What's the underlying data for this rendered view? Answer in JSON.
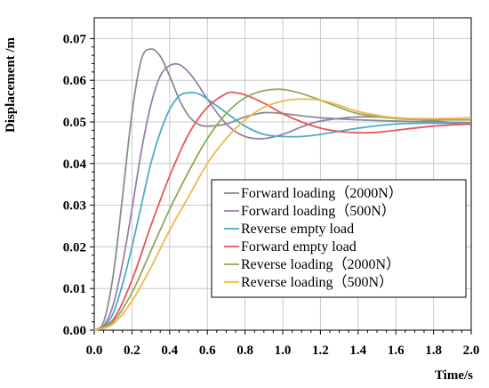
{
  "chart_data": {
    "type": "line",
    "title": "",
    "xlabel": "Time/s",
    "ylabel": "Displacement /m",
    "xlim": [
      0,
      2.0
    ],
    "ylim": [
      0,
      0.075
    ],
    "x_ticks": [
      "0.0",
      "0.2",
      "0.4",
      "0.6",
      "0.8",
      "1.0",
      "1.2",
      "1.4",
      "1.6",
      "1.8",
      "2.0"
    ],
    "y_ticks": [
      "0.00",
      "0.01",
      "0.02",
      "0.03",
      "0.04",
      "0.05",
      "0.06",
      "0.07"
    ],
    "grid": true,
    "legend_position": "bottom-right",
    "series": [
      {
        "name": "Forward loading（2000N）",
        "color": "#8c8c8c",
        "x": [
          0,
          0.05,
          0.1,
          0.15,
          0.2,
          0.25,
          0.3,
          0.35,
          0.4,
          0.45,
          0.5,
          0.55,
          0.6,
          0.7,
          0.8,
          0.9,
          1.0,
          1.2,
          1.4,
          1.6,
          1.8,
          2.0
        ],
        "y": [
          0,
          0.002,
          0.013,
          0.032,
          0.052,
          0.065,
          0.0675,
          0.0658,
          0.061,
          0.0555,
          0.0515,
          0.0495,
          0.049,
          0.0495,
          0.0512,
          0.0522,
          0.052,
          0.051,
          0.0505,
          0.0502,
          0.05,
          0.0498
        ]
      },
      {
        "name": "Forward loading（500N）",
        "color": "#9a7fa8",
        "x": [
          0,
          0.05,
          0.1,
          0.15,
          0.2,
          0.25,
          0.3,
          0.35,
          0.4,
          0.45,
          0.5,
          0.55,
          0.6,
          0.7,
          0.8,
          0.9,
          1.0,
          1.1,
          1.2,
          1.4,
          1.6,
          1.8,
          2.0
        ],
        "y": [
          0,
          0.001,
          0.006,
          0.016,
          0.029,
          0.043,
          0.054,
          0.061,
          0.0635,
          0.0638,
          0.062,
          0.059,
          0.0555,
          0.0495,
          0.0465,
          0.046,
          0.047,
          0.0488,
          0.0502,
          0.0512,
          0.051,
          0.0502,
          0.0495
        ]
      },
      {
        "name": "Reverse empty load",
        "color": "#4bacc6",
        "x": [
          0,
          0.05,
          0.1,
          0.15,
          0.2,
          0.25,
          0.3,
          0.35,
          0.4,
          0.45,
          0.5,
          0.55,
          0.6,
          0.7,
          0.8,
          0.9,
          1.0,
          1.1,
          1.2,
          1.4,
          1.6,
          1.8,
          2.0
        ],
        "y": [
          0,
          0.0008,
          0.004,
          0.011,
          0.02,
          0.03,
          0.04,
          0.0475,
          0.053,
          0.0562,
          0.057,
          0.0568,
          0.0555,
          0.0522,
          0.049,
          0.047,
          0.0465,
          0.0465,
          0.047,
          0.0485,
          0.0495,
          0.0497,
          0.0495
        ]
      },
      {
        "name": "Forward empty load",
        "color": "#e8555a",
        "x": [
          0,
          0.1,
          0.2,
          0.3,
          0.4,
          0.5,
          0.6,
          0.7,
          0.75,
          0.8,
          0.9,
          1.0,
          1.1,
          1.2,
          1.3,
          1.4,
          1.5,
          1.6,
          1.8,
          2.0
        ],
        "y": [
          0,
          0.0025,
          0.012,
          0.025,
          0.037,
          0.047,
          0.0535,
          0.0568,
          0.057,
          0.0565,
          0.0545,
          0.052,
          0.05,
          0.0485,
          0.0477,
          0.0474,
          0.0475,
          0.048,
          0.049,
          0.0495
        ]
      },
      {
        "name": "Reverse loading（2000N）",
        "color": "#8cab5a",
        "x": [
          0,
          0.1,
          0.2,
          0.3,
          0.4,
          0.5,
          0.6,
          0.7,
          0.8,
          0.9,
          1.0,
          1.1,
          1.2,
          1.3,
          1.4,
          1.6,
          1.8,
          2.0
        ],
        "y": [
          0,
          0.002,
          0.009,
          0.019,
          0.029,
          0.038,
          0.046,
          0.052,
          0.0558,
          0.0575,
          0.0578,
          0.0568,
          0.0552,
          0.0535,
          0.052,
          0.0508,
          0.0505,
          0.0505
        ]
      },
      {
        "name": "Reverse loading（500N）",
        "color": "#f0b84a",
        "x": [
          0,
          0.1,
          0.2,
          0.3,
          0.4,
          0.5,
          0.6,
          0.7,
          0.8,
          0.9,
          1.0,
          1.1,
          1.2,
          1.3,
          1.4,
          1.6,
          1.8,
          2.0
        ],
        "y": [
          0,
          0.0015,
          0.007,
          0.015,
          0.024,
          0.032,
          0.04,
          0.046,
          0.0505,
          0.0535,
          0.055,
          0.0555,
          0.0552,
          0.054,
          0.0525,
          0.051,
          0.0508,
          0.051
        ]
      }
    ]
  }
}
